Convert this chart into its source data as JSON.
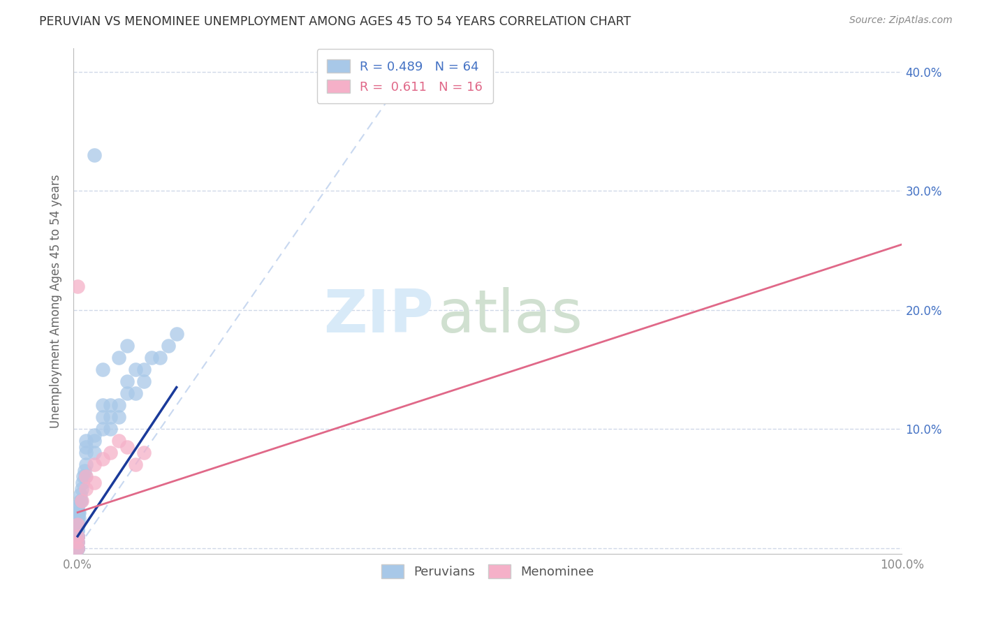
{
  "title": "PERUVIAN VS MENOMINEE UNEMPLOYMENT AMONG AGES 45 TO 54 YEARS CORRELATION CHART",
  "source_text": "Source: ZipAtlas.com",
  "ylabel": "Unemployment Among Ages 45 to 54 years",
  "xlim": [
    -0.005,
    1.0
  ],
  "ylim": [
    -0.005,
    0.42
  ],
  "xtick_positions": [
    0.0,
    0.1,
    0.2,
    0.3,
    0.4,
    0.5,
    0.6,
    0.7,
    0.8,
    0.9,
    1.0
  ],
  "xticklabels": [
    "0.0%",
    "",
    "",
    "",
    "",
    "",
    "",
    "",
    "",
    "",
    "100.0%"
  ],
  "ytick_positions": [
    0.0,
    0.1,
    0.2,
    0.3,
    0.4
  ],
  "yticklabels": [
    "",
    "10.0%",
    "20.0%",
    "30.0%",
    "40.0%"
  ],
  "legend_line1": "R = 0.489   N = 64",
  "legend_line2": "R =  0.611   N = 16",
  "blue_scatter_color": "#a8c8e8",
  "blue_line_color": "#1a3a9a",
  "pink_scatter_color": "#f5b0c8",
  "pink_line_color": "#e06888",
  "diag_color": "#c8d8f0",
  "grid_color": "#d0d8e8",
  "ytick_color": "#4472c4",
  "xtick_color": "#888888",
  "title_color": "#333333",
  "source_color": "#888888",
  "ylabel_color": "#666666",
  "watermark_zip_color": "#d8eaf8",
  "watermark_atlas_color": "#d0e0d0",
  "peruvian_x": [
    0.0,
    0.0,
    0.0,
    0.0,
    0.0,
    0.0,
    0.0,
    0.0,
    0.0,
    0.0,
    0.0,
    0.0,
    0.0,
    0.0,
    0.0,
    0.0,
    0.0,
    0.0,
    0.0,
    0.0,
    0.0,
    0.0,
    0.0,
    0.001,
    0.001,
    0.002,
    0.002,
    0.003,
    0.003,
    0.004,
    0.005,
    0.006,
    0.007,
    0.008,
    0.009,
    0.01,
    0.01,
    0.01,
    0.01,
    0.02,
    0.02,
    0.02,
    0.03,
    0.03,
    0.03,
    0.04,
    0.04,
    0.04,
    0.05,
    0.05,
    0.06,
    0.06,
    0.07,
    0.07,
    0.08,
    0.08,
    0.09,
    0.1,
    0.11,
    0.12,
    0.05,
    0.06,
    0.03,
    0.02
  ],
  "peruvian_y": [
    0.0,
    0.0,
    0.0,
    0.0,
    0.0,
    0.0,
    0.0,
    0.005,
    0.005,
    0.01,
    0.01,
    0.01,
    0.01,
    0.015,
    0.015,
    0.02,
    0.02,
    0.025,
    0.025,
    0.03,
    0.03,
    0.035,
    0.035,
    0.02,
    0.03,
    0.025,
    0.03,
    0.04,
    0.045,
    0.04,
    0.05,
    0.055,
    0.06,
    0.065,
    0.06,
    0.07,
    0.08,
    0.085,
    0.09,
    0.08,
    0.09,
    0.095,
    0.1,
    0.11,
    0.12,
    0.1,
    0.11,
    0.12,
    0.11,
    0.12,
    0.13,
    0.14,
    0.13,
    0.15,
    0.14,
    0.15,
    0.16,
    0.16,
    0.17,
    0.18,
    0.16,
    0.17,
    0.15,
    0.33
  ],
  "menominee_x": [
    0.0,
    0.0,
    0.0,
    0.0,
    0.005,
    0.01,
    0.01,
    0.02,
    0.02,
    0.03,
    0.04,
    0.05,
    0.06,
    0.07,
    0.08,
    0.0
  ],
  "menominee_y": [
    0.0,
    0.005,
    0.01,
    0.22,
    0.04,
    0.05,
    0.06,
    0.055,
    0.07,
    0.075,
    0.08,
    0.09,
    0.085,
    0.07,
    0.08,
    0.02
  ],
  "blue_trend_x": [
    0.0,
    0.12
  ],
  "blue_trend_y": [
    0.01,
    0.135
  ],
  "pink_trend_x": [
    0.0,
    1.0
  ],
  "pink_trend_y": [
    0.03,
    0.255
  ]
}
